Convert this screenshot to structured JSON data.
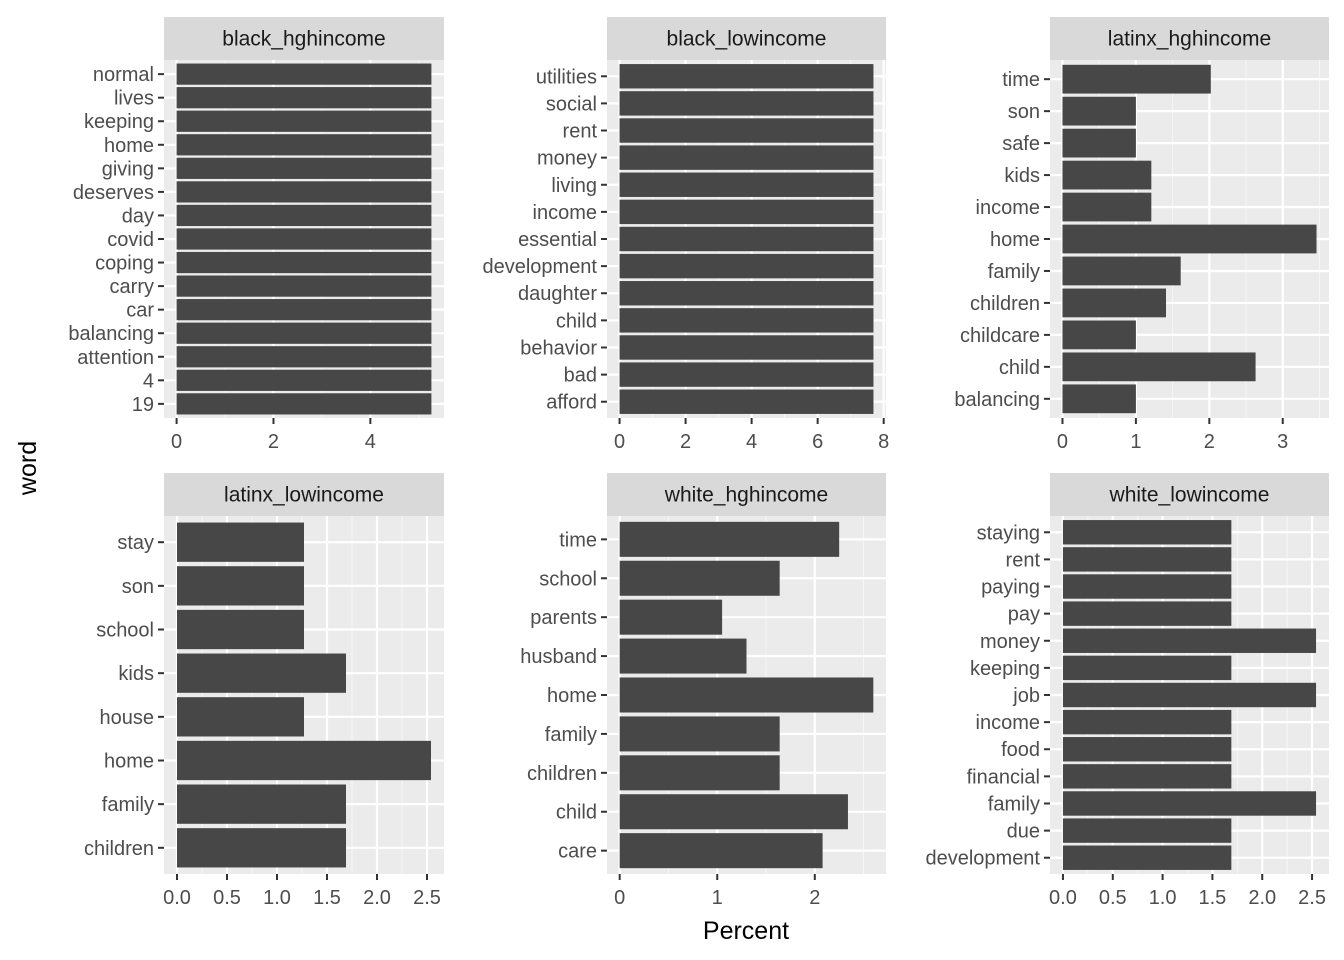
{
  "figure": {
    "xlabel": "Percent",
    "ylabel": "word"
  },
  "colors": {
    "panel_bg": "#ebebeb",
    "strip_bg": "#d9d9d9",
    "grid_major": "#ffffff",
    "bar_fill": "#474747",
    "tick": "#333333"
  },
  "chart_data": [
    {
      "type": "bar",
      "orientation": "horizontal",
      "title": "black_hghincome",
      "categories": [
        "19",
        "4",
        "attention",
        "balancing",
        "car",
        "carry",
        "coping",
        "covid",
        "day",
        "deserves",
        "giving",
        "home",
        "keeping",
        "lives",
        "normal"
      ],
      "values": [
        5.26,
        5.26,
        5.26,
        5.26,
        5.26,
        5.26,
        5.26,
        5.26,
        5.26,
        5.26,
        5.26,
        5.26,
        5.26,
        5.26,
        5.26
      ],
      "xlim": [
        -0.26,
        5.52
      ],
      "xticks": [
        0,
        2,
        4
      ],
      "xtick_labels": [
        "0",
        "2",
        "4"
      ],
      "grid": true
    },
    {
      "type": "bar",
      "orientation": "horizontal",
      "title": "black_lowincome",
      "categories": [
        "afford",
        "bad",
        "behavior",
        "child",
        "daughter",
        "development",
        "essential",
        "income",
        "living",
        "money",
        "rent",
        "social",
        "utilities"
      ],
      "values": [
        7.69,
        7.69,
        7.69,
        7.69,
        7.69,
        7.69,
        7.69,
        7.69,
        7.69,
        7.69,
        7.69,
        7.69,
        7.69
      ],
      "xlim": [
        -0.38,
        8.07
      ],
      "xticks": [
        0,
        2,
        4,
        6,
        8
      ],
      "xtick_labels": [
        "0",
        "2",
        "4",
        "6",
        "8"
      ],
      "grid": true
    },
    {
      "type": "bar",
      "orientation": "horizontal",
      "title": "latinx_hghincome",
      "categories": [
        "balancing",
        "child",
        "childcare",
        "children",
        "family",
        "home",
        "income",
        "kids",
        "safe",
        "son",
        "time"
      ],
      "values": [
        1.0,
        2.63,
        1.0,
        1.41,
        1.61,
        3.46,
        1.21,
        1.21,
        1.0,
        1.0,
        2.02
      ],
      "xlim": [
        -0.17,
        3.63
      ],
      "xticks": [
        0,
        1,
        2,
        3
      ],
      "xtick_labels": [
        "0",
        "1",
        "2",
        "3"
      ],
      "grid": true
    },
    {
      "type": "bar",
      "orientation": "horizontal",
      "title": "latinx_lowincome",
      "categories": [
        "children",
        "family",
        "home",
        "house",
        "kids",
        "school",
        "son",
        "stay"
      ],
      "values": [
        1.69,
        1.69,
        2.54,
        1.27,
        1.69,
        1.27,
        1.27,
        1.27
      ],
      "xlim": [
        -0.13,
        2.67
      ],
      "xticks": [
        0,
        0.5,
        1,
        1.5,
        2,
        2.5
      ],
      "xtick_labels": [
        "0.0",
        "0.5",
        "1.0",
        "1.5",
        "2.0",
        "2.5"
      ],
      "grid": true
    },
    {
      "type": "bar",
      "orientation": "horizontal",
      "title": "white_hghincome",
      "categories": [
        "care",
        "child",
        "children",
        "family",
        "home",
        "husband",
        "parents",
        "school",
        "time"
      ],
      "values": [
        2.08,
        2.34,
        1.64,
        1.64,
        2.6,
        1.3,
        1.05,
        1.64,
        2.25
      ],
      "xlim": [
        -0.13,
        2.73
      ],
      "xticks": [
        0,
        1,
        2
      ],
      "xtick_labels": [
        "0",
        "1",
        "2"
      ],
      "grid": true
    },
    {
      "type": "bar",
      "orientation": "horizontal",
      "title": "white_lowincome",
      "categories": [
        "development",
        "due",
        "family",
        "financial",
        "food",
        "income",
        "job",
        "keeping",
        "money",
        "pay",
        "paying",
        "rent",
        "staying"
      ],
      "values": [
        1.69,
        1.69,
        2.54,
        1.69,
        1.69,
        1.69,
        2.54,
        1.69,
        2.54,
        1.69,
        1.69,
        1.69,
        1.69
      ],
      "xlim": [
        -0.13,
        2.67
      ],
      "xticks": [
        0,
        0.5,
        1,
        1.5,
        2,
        2.5
      ],
      "xtick_labels": [
        "0.0",
        "0.5",
        "1.0",
        "1.5",
        "2.0",
        "2.5"
      ],
      "grid": true
    }
  ]
}
